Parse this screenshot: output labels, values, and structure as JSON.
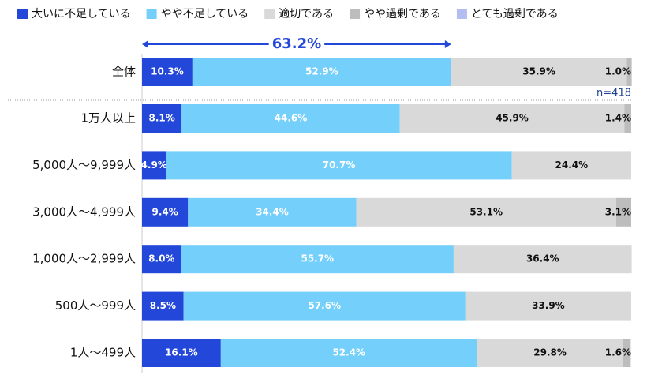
{
  "chart_data": {
    "type": "stacked-bar-horizontal",
    "categories": [
      "全体",
      "1万人以上",
      "5,000人～9,999人",
      "3,000人～4,999人",
      "1,000人～2,999人",
      "500人～999人",
      "1人～499人"
    ],
    "series": [
      {
        "name": "大いに不足している",
        "color": "#2347d8",
        "label_color": "#ffffff",
        "values": [
          10.3,
          8.1,
          4.9,
          9.4,
          8.0,
          8.5,
          16.1
        ],
        "value_labels": [
          "10.3%",
          "8.1%",
          "4.9%",
          "9.4%",
          "8.0%",
          "8.5%",
          "16.1%"
        ]
      },
      {
        "name": "やや不足している",
        "color": "#75cffb",
        "label_color": "#ffffff",
        "values": [
          52.9,
          44.6,
          70.7,
          34.4,
          55.7,
          57.6,
          52.4
        ],
        "value_labels": [
          "52.9%",
          "44.6%",
          "70.7%",
          "34.4%",
          "55.7%",
          "57.6%",
          "52.4%"
        ]
      },
      {
        "name": "適切である",
        "color": "#d9d9d9",
        "label_color": "#111111",
        "values": [
          35.9,
          45.9,
          24.4,
          53.1,
          36.4,
          33.9,
          29.8
        ],
        "value_labels": [
          "35.9%",
          "45.9%",
          "24.4%",
          "53.1%",
          "36.4%",
          "33.9%",
          "29.8%"
        ]
      },
      {
        "name": "やや過剰である",
        "color": "#bdbdbd",
        "label_color": "#111111",
        "values": [
          1.0,
          1.4,
          null,
          3.1,
          null,
          null,
          1.6
        ],
        "value_labels": [
          "1.0%",
          "1.4%",
          null,
          "3.1%",
          null,
          null,
          "1.6%"
        ]
      },
      {
        "name": "とても過剰である",
        "color": "#b4bdf0",
        "label_color": "#111111",
        "values": [
          null,
          null,
          null,
          null,
          null,
          null,
          null
        ],
        "value_labels": [
          null,
          null,
          null,
          null,
          null,
          null,
          null
        ]
      }
    ],
    "xlim": [
      0,
      100
    ],
    "bracket": {
      "value": 63.2,
      "label": "63.2%",
      "color": "#2347d8"
    },
    "note": "n=418"
  }
}
